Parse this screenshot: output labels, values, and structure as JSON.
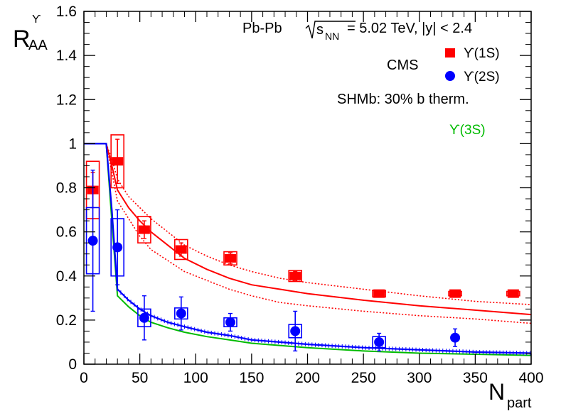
{
  "chart_data": {
    "type": "scatter",
    "xlabel_main": "N",
    "xlabel_sub": "part",
    "ylabel_main": "R",
    "ylabel_sub": "AA",
    "ylabel_sup": "ϒ",
    "xlim": [
      0,
      400
    ],
    "ylim": [
      0,
      1.6
    ],
    "x_ticks": [
      "0",
      "50",
      "100",
      "150",
      "200",
      "250",
      "300",
      "350",
      "400"
    ],
    "y_ticks": [
      "0",
      "0.2",
      "0.4",
      "0.6",
      "0.8",
      "1",
      "1.2",
      "1.4",
      "1.6"
    ],
    "annotations": {
      "system": "Pb-Pb",
      "energy_sym": "s",
      "energy_sub": "NN",
      "energy_value": "= 5.02 TeV, |y| < 2.4",
      "experiment": "CMS",
      "model": "SHMb: 30% b therm.",
      "model_3s": "ϒ(3S)"
    },
    "legend": [
      {
        "label": "ϒ(1S)",
        "color": "#ff0000",
        "marker": "square"
      },
      {
        "label": "ϒ(2S)",
        "color": "#0000ff",
        "marker": "circle"
      }
    ],
    "series": [
      {
        "name": "ϒ(1S)",
        "color": "#ff0000",
        "marker": "square",
        "points": [
          {
            "x": 8,
            "y": 0.79,
            "stat": 0.08,
            "sys": 0.13
          },
          {
            "x": 30,
            "y": 0.92,
            "stat": 0.1,
            "sys": 0.12
          },
          {
            "x": 54,
            "y": 0.61,
            "stat": 0.04,
            "sys": 0.06
          },
          {
            "x": 87,
            "y": 0.52,
            "stat": 0.03,
            "sys": 0.045
          },
          {
            "x": 131,
            "y": 0.48,
            "stat": 0.025,
            "sys": 0.03
          },
          {
            "x": 189,
            "y": 0.4,
            "stat": 0.02,
            "sys": 0.025
          },
          {
            "x": 264,
            "y": 0.32,
            "stat": 0.015,
            "sys": 0.015
          },
          {
            "x": 332,
            "y": 0.32,
            "stat": 0.015,
            "sys": 0.01
          },
          {
            "x": 384,
            "y": 0.32,
            "stat": 0.01,
            "sys": 0.01
          }
        ]
      },
      {
        "name": "ϒ(2S)",
        "color": "#0000ff",
        "marker": "circle",
        "points": [
          {
            "x": 8,
            "y": 0.56,
            "stat": 0.32,
            "sys": 0.15
          },
          {
            "x": 30,
            "y": 0.53,
            "stat": 0.17,
            "sys": 0.13
          },
          {
            "x": 54,
            "y": 0.21,
            "stat": 0.1,
            "sys": 0.04
          },
          {
            "x": 87,
            "y": 0.23,
            "stat": 0.075,
            "sys": 0.025
          },
          {
            "x": 131,
            "y": 0.19,
            "stat": 0.04,
            "sys": 0.02
          },
          {
            "x": 189,
            "y": 0.15,
            "stat": 0.09,
            "sys": 0.03
          },
          {
            "x": 264,
            "y": 0.1,
            "stat": 0.04,
            "sys": 0.025
          },
          {
            "x": 332,
            "y": 0.12,
            "stat": 0.04,
            "sys": 0.0
          },
          {
            "x": 384,
            "y": null,
            "stat": 0,
            "sys": 0
          }
        ]
      }
    ],
    "model_curves": {
      "x": [
        0,
        10,
        20,
        25,
        30,
        40,
        50,
        60,
        75,
        90,
        110,
        130,
        150,
        175,
        200,
        250,
        300,
        350,
        400
      ],
      "u1s_central": [
        1.0,
        1.0,
        1.0,
        0.9,
        0.79,
        0.71,
        0.65,
        0.6,
        0.54,
        0.48,
        0.43,
        0.39,
        0.36,
        0.34,
        0.32,
        0.29,
        0.265,
        0.245,
        0.225
      ],
      "u1s_upper": [
        1.0,
        1.0,
        1.0,
        0.93,
        0.84,
        0.76,
        0.71,
        0.66,
        0.6,
        0.54,
        0.49,
        0.45,
        0.42,
        0.39,
        0.37,
        0.34,
        0.31,
        0.285,
        0.27
      ],
      "u1s_lower": [
        1.0,
        1.0,
        1.0,
        0.87,
        0.74,
        0.66,
        0.58,
        0.52,
        0.47,
        0.42,
        0.38,
        0.34,
        0.31,
        0.28,
        0.265,
        0.24,
        0.22,
        0.205,
        0.185
      ],
      "u2s": [
        1.0,
        1.0,
        1.0,
        0.7,
        0.34,
        0.29,
        0.25,
        0.22,
        0.19,
        0.17,
        0.145,
        0.13,
        0.11,
        0.1,
        0.09,
        0.075,
        0.065,
        0.055,
        0.05
      ],
      "u3s": [
        1.0,
        1.0,
        1.0,
        0.65,
        0.31,
        0.26,
        0.22,
        0.19,
        0.165,
        0.145,
        0.125,
        0.11,
        0.095,
        0.085,
        0.075,
        0.06,
        0.05,
        0.045,
        0.04
      ]
    }
  }
}
